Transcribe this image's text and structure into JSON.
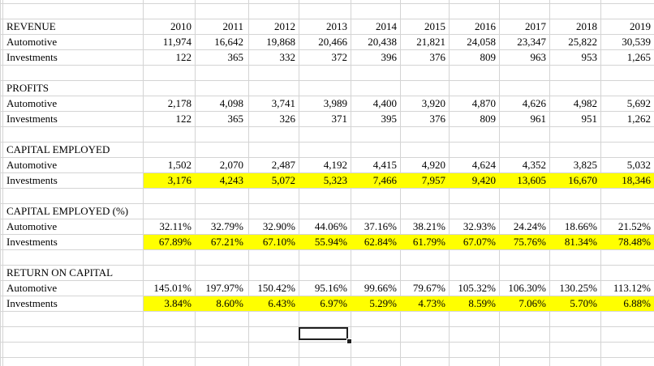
{
  "years": [
    "2010",
    "2011",
    "2012",
    "2013",
    "2014",
    "2015",
    "2016",
    "2017",
    "2018",
    "2019"
  ],
  "sections": [
    {
      "title": "REVENUE",
      "rows": [
        {
          "label": "Automotive",
          "highlight": false,
          "values": [
            "11,974",
            "16,642",
            "19,868",
            "20,466",
            "20,438",
            "21,821",
            "24,058",
            "23,347",
            "25,822",
            "30,539"
          ]
        },
        {
          "label": "Investments",
          "highlight": false,
          "values": [
            "122",
            "365",
            "332",
            "372",
            "396",
            "376",
            "809",
            "963",
            "953",
            "1,265"
          ]
        }
      ]
    },
    {
      "title": "PROFITS",
      "rows": [
        {
          "label": "Automotive",
          "highlight": false,
          "values": [
            "2,178",
            "4,098",
            "3,741",
            "3,989",
            "4,400",
            "3,920",
            "4,870",
            "4,626",
            "4,982",
            "5,692"
          ]
        },
        {
          "label": "Investments",
          "highlight": false,
          "values": [
            "122",
            "365",
            "326",
            "371",
            "395",
            "376",
            "809",
            "961",
            "951",
            "1,262"
          ]
        }
      ]
    },
    {
      "title": "CAPITAL EMPLOYED",
      "rows": [
        {
          "label": "Automotive",
          "highlight": false,
          "values": [
            "1,502",
            "2,070",
            "2,487",
            "4,192",
            "4,415",
            "4,920",
            "4,624",
            "4,352",
            "3,825",
            "5,032"
          ]
        },
        {
          "label": "Investments",
          "highlight": true,
          "values": [
            "3,176",
            "4,243",
            "5,072",
            "5,323",
            "7,466",
            "7,957",
            "9,420",
            "13,605",
            "16,670",
            "18,346"
          ]
        }
      ]
    },
    {
      "title": "CAPITAL EMPLOYED (%)",
      "rows": [
        {
          "label": "Automotive",
          "highlight": false,
          "values": [
            "32.11%",
            "32.79%",
            "32.90%",
            "44.06%",
            "37.16%",
            "38.21%",
            "32.93%",
            "24.24%",
            "18.66%",
            "21.52%"
          ]
        },
        {
          "label": "Investments",
          "highlight": true,
          "values": [
            "67.89%",
            "67.21%",
            "67.10%",
            "55.94%",
            "62.84%",
            "61.79%",
            "67.07%",
            "75.76%",
            "81.34%",
            "78.48%"
          ]
        }
      ]
    },
    {
      "title": "RETURN ON CAPITAL",
      "rows": [
        {
          "label": "Automotive",
          "highlight": false,
          "values": [
            "145.01%",
            "197.97%",
            "150.42%",
            "95.16%",
            "99.66%",
            "79.67%",
            "105.32%",
            "106.30%",
            "130.25%",
            "113.12%"
          ]
        },
        {
          "label": "Investments",
          "highlight": true,
          "values": [
            "3.84%",
            "8.60%",
            "6.43%",
            "6.97%",
            "5.29%",
            "4.73%",
            "8.59%",
            "7.06%",
            "5.70%",
            "6.88%"
          ]
        }
      ]
    }
  ],
  "highlight_color": "#ffff00",
  "gridline_color": "#d4d4d4"
}
